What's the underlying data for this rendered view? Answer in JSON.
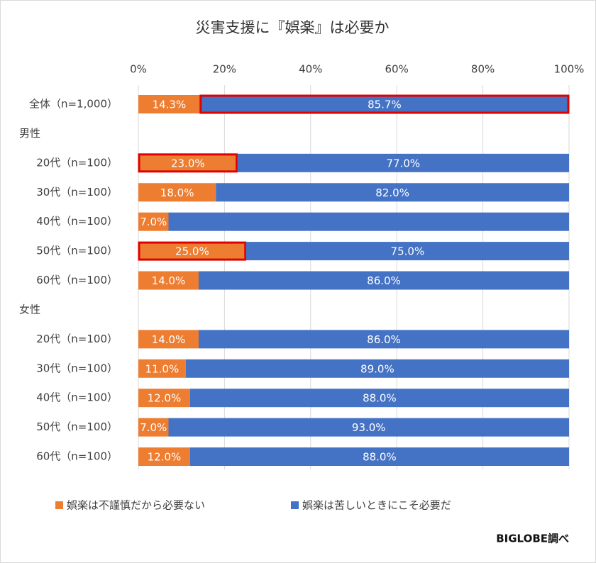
{
  "chart_data": {
    "type": "stacked-barh",
    "title": "災害支援に『娯楽』は必要か",
    "source": "BIGLOBE調べ",
    "categories": [
      "全体（n=1,000）",
      "男性",
      "20代（n=100）",
      "30代（n=100）",
      "40代（n=100）",
      "50代（n=100）",
      "60代（n=100）",
      "女性",
      "20代（n=100）",
      "30代（n=100）",
      "40代（n=100）",
      "50代（n=100）",
      "60代（n=100）"
    ],
    "group_headers": [
      "男性",
      "女性"
    ],
    "series": [
      {
        "name": "娯楽は不謹慎だから必要ない",
        "color": "#ed7d31",
        "values": [
          14.3,
          null,
          23.0,
          18.0,
          7.0,
          25.0,
          14.0,
          null,
          14.0,
          11.0,
          12.0,
          7.0,
          12.0
        ],
        "value_labels": [
          "14.3%",
          null,
          "23.0%",
          "18.0%",
          "7.0%",
          "25.0%",
          "14.0%",
          null,
          "14.0%",
          "11.0%",
          "12.0%",
          "7.0%",
          "12.0%"
        ]
      },
      {
        "name": "娯楽は苦しいときにこそ必要だ",
        "color": "#4472c4",
        "values": [
          85.7,
          null,
          77.0,
          82.0,
          93.0,
          75.0,
          86.0,
          null,
          86.0,
          89.0,
          88.0,
          93.0,
          88.0
        ],
        "value_labels": [
          "85.7%",
          null,
          "77.0%",
          "82.0%",
          null,
          "75.0%",
          "86.0%",
          null,
          "86.0%",
          "89.0%",
          "88.0%",
          "93.0%",
          "88.0%"
        ]
      }
    ],
    "xlim": [
      0,
      100
    ],
    "xticks": [
      {
        "value": 0,
        "label": "0%"
      },
      {
        "value": 20,
        "label": "20%"
      },
      {
        "value": 40,
        "label": "40%"
      },
      {
        "value": 60,
        "label": "60%"
      },
      {
        "value": 80,
        "label": "80%"
      },
      {
        "value": 100,
        "label": "100%"
      }
    ],
    "grid": true,
    "legend": "bottom",
    "highlight_color": "#e00000",
    "highlighted": [
      [
        1,
        0
      ],
      [
        0,
        2
      ],
      [
        0,
        5
      ]
    ]
  }
}
